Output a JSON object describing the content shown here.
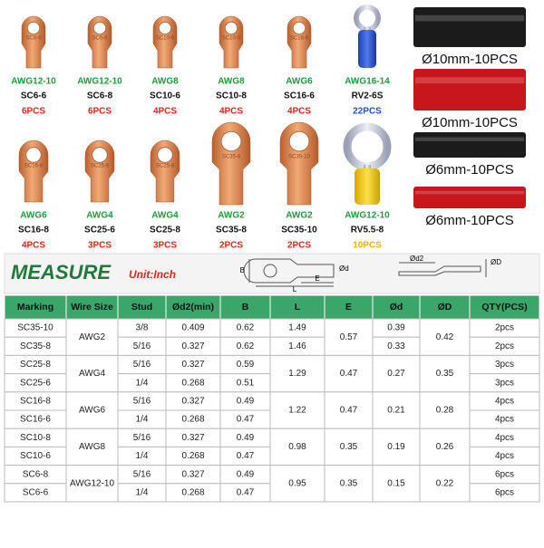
{
  "products": {
    "rows": [
      {
        "items": [
          {
            "awg": "AWG12-10",
            "model": "SC6-6",
            "qty": "6PCS",
            "qty_color": "#e3241b"
          },
          {
            "awg": "AWG12-10",
            "model": "SC6-8",
            "qty": "6PCS",
            "qty_color": "#e3241b"
          },
          {
            "awg": "AWG8",
            "model": "SC10-6",
            "qty": "4PCS",
            "qty_color": "#e3241b"
          },
          {
            "awg": "AWG8",
            "model": "SC10-8",
            "qty": "4PCS",
            "qty_color": "#e3241b"
          },
          {
            "awg": "AWG6",
            "model": "SC16-6",
            "qty": "4PCS",
            "qty_color": "#e3241b"
          },
          {
            "awg": "AWG16-14",
            "model": "RV2-6S",
            "qty": "22PCS",
            "qty_color": "#1f4fd1"
          }
        ]
      },
      {
        "items": [
          {
            "awg": "AWG6",
            "model": "SC16-8",
            "qty": "4PCS",
            "qty_color": "#e3241b"
          },
          {
            "awg": "AWG4",
            "model": "SC25-6",
            "qty": "3PCS",
            "qty_color": "#e3241b"
          },
          {
            "awg": "AWG4",
            "model": "SC25-8",
            "qty": "3PCS",
            "qty_color": "#e3241b"
          },
          {
            "awg": "AWG2",
            "model": "SC35-8",
            "qty": "2PCS",
            "qty_color": "#e3241b"
          },
          {
            "awg": "AWG2",
            "model": "SC35-10",
            "qty": "2PCS",
            "qty_color": "#e3241b"
          },
          {
            "awg": "AWG12-10",
            "model": "RV5.5-8",
            "qty": "10PCS",
            "qty_color": "#e8b400"
          }
        ]
      }
    ]
  },
  "tubes": [
    {
      "label": "Ø10mm-10PCS",
      "color": "#1b1b1b"
    },
    {
      "label": "Ø10mm-10PCS",
      "color": "#c8161d"
    },
    {
      "label": "Ø6mm-10PCS",
      "color": "#1b1b1b"
    },
    {
      "label": "Ø6mm-10PCS",
      "color": "#c8161d"
    }
  ],
  "measure": {
    "title": "MEASURE",
    "unit": "Unit:Inch",
    "diagram_labels": [
      "B",
      "Ød",
      "L",
      "E",
      "Ød2",
      "ØD"
    ]
  },
  "table": {
    "header": [
      "Marking",
      "Wire Size",
      "Stud",
      "Ød2(min)",
      "B",
      "L",
      "E",
      "Ød",
      "ØD",
      "QTY(PCS)"
    ],
    "groups": [
      {
        "wire_size": "AWG2",
        "e": "0.57",
        "D": "0.42",
        "rows": [
          {
            "marking": "SC35-10",
            "stud": "3/8",
            "d2": "0.409",
            "b": "0.62",
            "l": "1.49",
            "d": "0.39",
            "qty": "2pcs"
          },
          {
            "marking": "SC35-8",
            "stud": "5/16",
            "d2": "0.327",
            "b": "0.62",
            "l": "1.46",
            "d": "0.33",
            "qty": "2pcs"
          }
        ]
      },
      {
        "wire_size": "AWG4",
        "l": "1.29",
        "e": "0.47",
        "d": "0.27",
        "D": "0.35",
        "rows": [
          {
            "marking": "SC25-8",
            "stud": "5/16",
            "d2": "0.327",
            "b": "0.59",
            "qty": "3pcs"
          },
          {
            "marking": "SC25-6",
            "stud": "1/4",
            "d2": "0.268",
            "b": "0.51",
            "qty": "3pcs"
          }
        ]
      },
      {
        "wire_size": "AWG6",
        "l": "1.22",
        "e": "0.47",
        "d": "0.21",
        "D": "0.28",
        "rows": [
          {
            "marking": "SC16-8",
            "stud": "5/16",
            "d2": "0.327",
            "b": "0.49",
            "qty": "4pcs"
          },
          {
            "marking": "SC16-6",
            "stud": "1/4",
            "d2": "0.268",
            "b": "0.47",
            "qty": "4pcs"
          }
        ]
      },
      {
        "wire_size": "AWG8",
        "l": "0.98",
        "e": "0.35",
        "d": "0.19",
        "D": "0.26",
        "rows": [
          {
            "marking": "SC10-8",
            "stud": "5/16",
            "d2": "0.327",
            "b": "0.49",
            "qty": "4pcs"
          },
          {
            "marking": "SC10-6",
            "stud": "1/4",
            "d2": "0.268",
            "b": "0.47",
            "qty": "4pcs"
          }
        ]
      },
      {
        "wire_size": "AWG12-10",
        "l": "0.95",
        "e": "0.35",
        "d": "0.15",
        "D": "0.22",
        "rows": [
          {
            "marking": "SC6-8",
            "stud": "5/16",
            "d2": "0.327",
            "b": "0.49",
            "qty": "6pcs"
          },
          {
            "marking": "SC6-6",
            "stud": "1/4",
            "d2": "0.268",
            "b": "0.47",
            "qty": "6pcs"
          }
        ]
      }
    ]
  }
}
